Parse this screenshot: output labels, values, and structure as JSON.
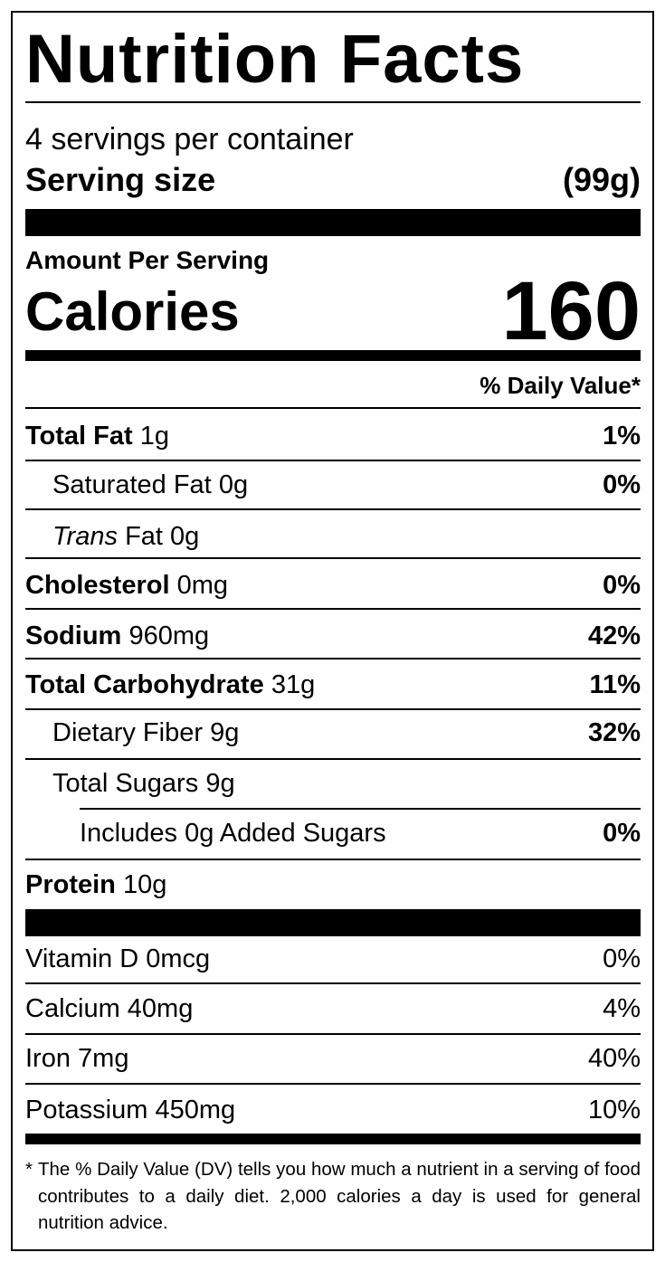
{
  "title": "Nutrition Facts",
  "servings": "4 servings per container",
  "serving_size": {
    "label": "Serving size",
    "value": "(99g)"
  },
  "amount_per_serving": "Amount Per Serving",
  "calories": {
    "label": "Calories",
    "value": "160"
  },
  "daily_value_header": "% Daily Value*",
  "nutrients": [
    {
      "name": "Total Fat",
      "amount": "1g",
      "dv": "1%"
    },
    {
      "name": "Saturated Fat",
      "amount": "0g",
      "dv": "0%"
    },
    {
      "name": "Trans",
      "amount": "Fat 0g"
    },
    {
      "name": "Cholesterol",
      "amount": "0mg",
      "dv": "0%"
    },
    {
      "name": "Sodium",
      "amount": "960mg",
      "dv": "42%"
    },
    {
      "name": "Total Carbohydrate",
      "amount": "31g",
      "dv": "11%"
    },
    {
      "name": "Dietary Fiber",
      "amount": "9g",
      "dv": "32%"
    },
    {
      "name": "Total Sugars",
      "amount": "9g"
    },
    {
      "name": "Includes 0g Added Sugars",
      "dv": "0%"
    },
    {
      "name": "Protein",
      "amount": "10g"
    }
  ],
  "vitamins": [
    {
      "name": "Vitamin D 0mcg",
      "dv": "0%"
    },
    {
      "name": "Calcium 40mg",
      "dv": "4%"
    },
    {
      "name": "Iron 7mg",
      "dv": "40%"
    },
    {
      "name": "Potassium 450mg",
      "dv": "10%"
    }
  ],
  "footnote": {
    "marker": "*",
    "text": "The % Daily Value (DV) tells you how much a nutrient in a serving of food contributes to a daily diet. 2,000 calories a day is used for general nutrition advice."
  }
}
